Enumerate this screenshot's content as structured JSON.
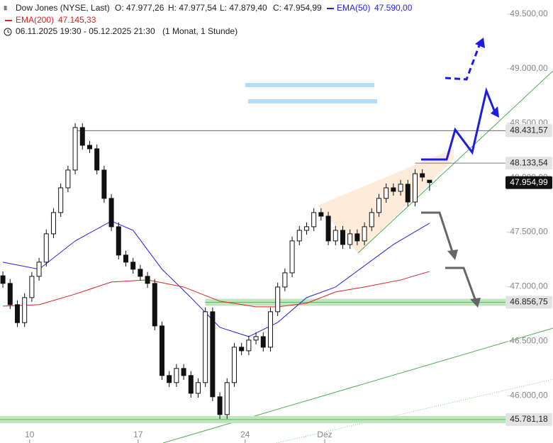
{
  "header": {
    "instrument": "Dow Jones (NYSE, Last)",
    "open": "O: 47.977,26",
    "high": "H: 47.977,54",
    "low": "L: 47.879,40",
    "close": "C: 47.954,99",
    "period": "06.11.2025 19:30 - 05.12.2025 21:30",
    "interval": "(1 Monat, 1 Stunde)"
  },
  "chart_data": {
    "type": "candlestick",
    "xlim": [
      -0.4,
      69.7
    ],
    "ylim": [
      45566,
      49630
    ],
    "xticks": [
      {
        "value": 3.7,
        "label": "10"
      },
      {
        "value": 18.7,
        "label": "17"
      },
      {
        "value": 33.5,
        "label": "24"
      },
      {
        "value": 44.5,
        "label": "Dez"
      }
    ],
    "yticks": [
      {
        "value": 46000,
        "label": "46.000,00"
      },
      {
        "value": 46500,
        "label": "46.500,00"
      },
      {
        "value": 47000,
        "label": "47.000,00"
      },
      {
        "value": 47500,
        "label": "47.500,00"
      },
      {
        "value": 48000,
        "label": "48.000,00"
      },
      {
        "value": 48500,
        "label": "48.500,00"
      },
      {
        "value": 49000,
        "label": "49.000,00"
      },
      {
        "value": 49500,
        "label": "49.500,00"
      }
    ],
    "open": [
      47100,
      47030,
      46835,
      46670,
      46900,
      47095,
      47225,
      47485,
      47680,
      47907,
      48070,
      48460,
      48297,
      48265,
      48070,
      47810,
      47550,
      47290,
      47225,
      47160,
      47095,
      47030,
      46640,
      46185,
      46120,
      46250,
      46185,
      46022,
      46120,
      46770,
      45990,
      45827,
      46120,
      46445,
      46412,
      46510,
      46542,
      46445,
      46770,
      46997,
      47127,
      47420,
      47517,
      47550,
      47680,
      47647,
      47420,
      47517,
      47387,
      47485,
      47420,
      47550,
      47680,
      47810,
      47907,
      47875,
      47940,
      47777,
      48037,
      47977.26
    ],
    "high": [
      47140,
      47070,
      46875,
      46940,
      47135,
      47265,
      47525,
      47720,
      47947,
      48110,
      48500,
      48500,
      48337,
      48305,
      48110,
      47850,
      47590,
      47330,
      47265,
      47200,
      47135,
      47070,
      46680,
      46225,
      46290,
      46290,
      46225,
      46160,
      46810,
      46810,
      46030,
      46160,
      46485,
      46485,
      46550,
      46582,
      46582,
      46810,
      47037,
      47167,
      47460,
      47557,
      47590,
      47720,
      47720,
      47687,
      47557,
      47557,
      47525,
      47525,
      47590,
      47720,
      47850,
      47947,
      47947,
      47980,
      47980,
      48077,
      48077,
      47977.54
    ],
    "low": [
      46990,
      46795,
      46630,
      46630,
      46860,
      47055,
      47185,
      47445,
      47640,
      47867,
      48030,
      48257,
      48225,
      48030,
      47770,
      47510,
      47250,
      47185,
      47120,
      47055,
      46990,
      46600,
      46145,
      46080,
      46080,
      46145,
      45982,
      45982,
      46080,
      45950,
      45787,
      45787,
      46080,
      46372,
      46372,
      46470,
      46405,
      46405,
      46730,
      46957,
      47087,
      47380,
      47477,
      47510,
      47607,
      47380,
      47380,
      47347,
      47347,
      47380,
      47380,
      47510,
      47640,
      47770,
      47835,
      47835,
      47737,
      47737,
      47965,
      47879.4
    ],
    "close": [
      47030,
      46835,
      46670,
      46900,
      47095,
      47225,
      47485,
      47680,
      47907,
      48070,
      48460,
      48297,
      48265,
      48070,
      47810,
      47550,
      47290,
      47225,
      47160,
      47095,
      47030,
      46640,
      46185,
      46120,
      46250,
      46185,
      46022,
      46120,
      46770,
      45990,
      45827,
      46120,
      46445,
      46412,
      46510,
      46542,
      46445,
      46770,
      46997,
      47127,
      47420,
      47517,
      47550,
      47680,
      47647,
      47420,
      47517,
      47387,
      47485,
      47420,
      47550,
      47680,
      47810,
      47907,
      47875,
      47940,
      47777,
      48037,
      48005,
      47954.99
    ],
    "series": [
      {
        "name": "EMA(50)",
        "value_label": "47.590,00",
        "color": "#2424e8",
        "x": [
          0,
          5,
          10,
          15,
          18,
          22,
          26,
          30,
          34,
          38,
          42,
          46,
          50,
          54,
          59
        ],
        "values": [
          47225,
          47160,
          47420,
          47602,
          47517,
          47160,
          46900,
          46627,
          46542,
          46672,
          46900,
          46997,
          47192,
          47387,
          47582
        ]
      },
      {
        "name": "EMA(200)",
        "value_label": "47.145,33",
        "color": "#dd2222",
        "x": [
          0,
          5,
          10,
          15,
          20,
          25,
          30,
          35,
          38,
          42,
          46,
          50,
          55,
          59
        ],
        "values": [
          46822,
          46835,
          46932,
          47043,
          47062,
          46997,
          46867,
          46815,
          46815,
          46848,
          46952,
          46997,
          47062,
          47140
        ]
      }
    ],
    "levels": [
      {
        "value": 48431.57,
        "label": "48.431,57",
        "start": 10,
        "kind": "line"
      },
      {
        "value": 48133.54,
        "label": "48.133,54",
        "start": 57,
        "kind": "line"
      },
      {
        "value": 46856.75,
        "label": "46.856,75",
        "start": 28,
        "kind": "band"
      },
      {
        "value": 45781.18,
        "label": "45.781,18",
        "start": -0.4,
        "kind": "band"
      }
    ],
    "last_price": {
      "value": 47954.99,
      "label": "47.954,99"
    },
    "up_color": "#ffffff",
    "down_color": "#111111"
  }
}
